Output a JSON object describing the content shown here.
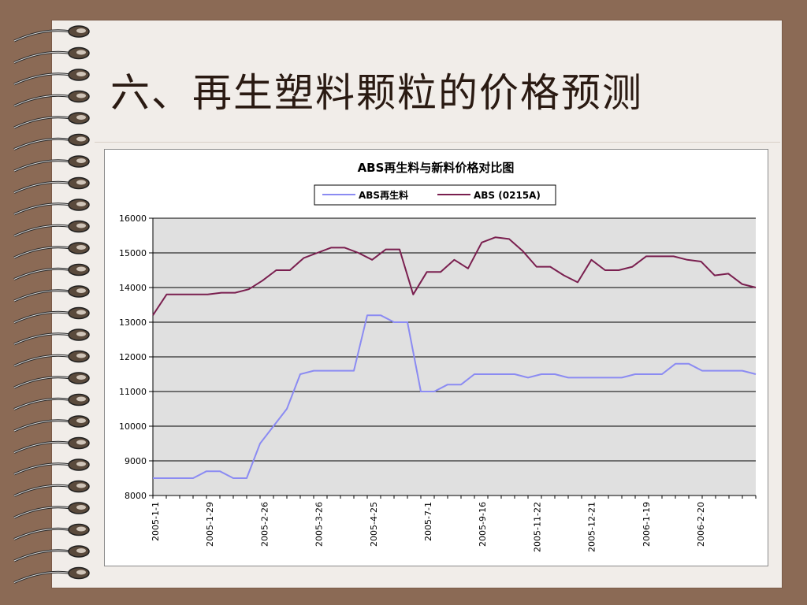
{
  "slide": {
    "title": "六、再生塑料颗粒的价格预测"
  },
  "colors": {
    "background": "#8b6a55",
    "slide": "#f1ede9",
    "plot_area": "#e0e0e0",
    "series_recycled": "#8b8bf2",
    "series_new": "#7a1f4f"
  },
  "icons": {
    "binding": "spiral-binding-icon"
  },
  "chart_data": {
    "type": "line",
    "title": "ABS再生料与新料价格对比图",
    "xlabel": "",
    "ylabel": "",
    "ylim": [
      8000,
      16000
    ],
    "y_ticks": [
      "8000",
      "9000",
      "10000",
      "11000",
      "12000",
      "13000",
      "14000",
      "15000",
      "16000"
    ],
    "x_tick_labels": [
      "2005-1-1",
      "2005-1-29",
      "2005-2-26",
      "2005-3-26",
      "2005-4-25",
      "2005-7-1",
      "2005-9-16",
      "2005-11-22",
      "2005-12-21",
      "2006-1-19",
      "2006-2-20"
    ],
    "grid": true,
    "legend_position": "top-center",
    "series": [
      {
        "name": "ABS再生料",
        "color": "#8b8bf2",
        "values": [
          8500,
          8500,
          8500,
          8500,
          8700,
          8700,
          8500,
          8500,
          9500,
          10000,
          10500,
          11500,
          11600,
          11600,
          11600,
          11600,
          13200,
          13200,
          13000,
          13000,
          11000,
          11000,
          11200,
          11200,
          11500,
          11500,
          11500,
          11500,
          11400,
          11500,
          11500,
          11400,
          11400,
          11400,
          11400,
          11400,
          11500,
          11500,
          11500,
          11800,
          11800,
          11600,
          11600,
          11600,
          11600,
          11500
        ]
      },
      {
        "name": "ABS (0215A)",
        "color": "#7a1f4f",
        "values": [
          13200,
          13800,
          13800,
          13800,
          13800,
          13850,
          13850,
          13950,
          14200,
          14500,
          14500,
          14850,
          15000,
          15150,
          15150,
          15000,
          14800,
          15100,
          15100,
          13800,
          14450,
          14450,
          14800,
          14550,
          15300,
          15450,
          15400,
          15050,
          14600,
          14600,
          14350,
          14150,
          14800,
          14500,
          14500,
          14600,
          14900,
          14900,
          14900,
          14800,
          14750,
          14350,
          14400,
          14100,
          14000
        ]
      }
    ]
  }
}
